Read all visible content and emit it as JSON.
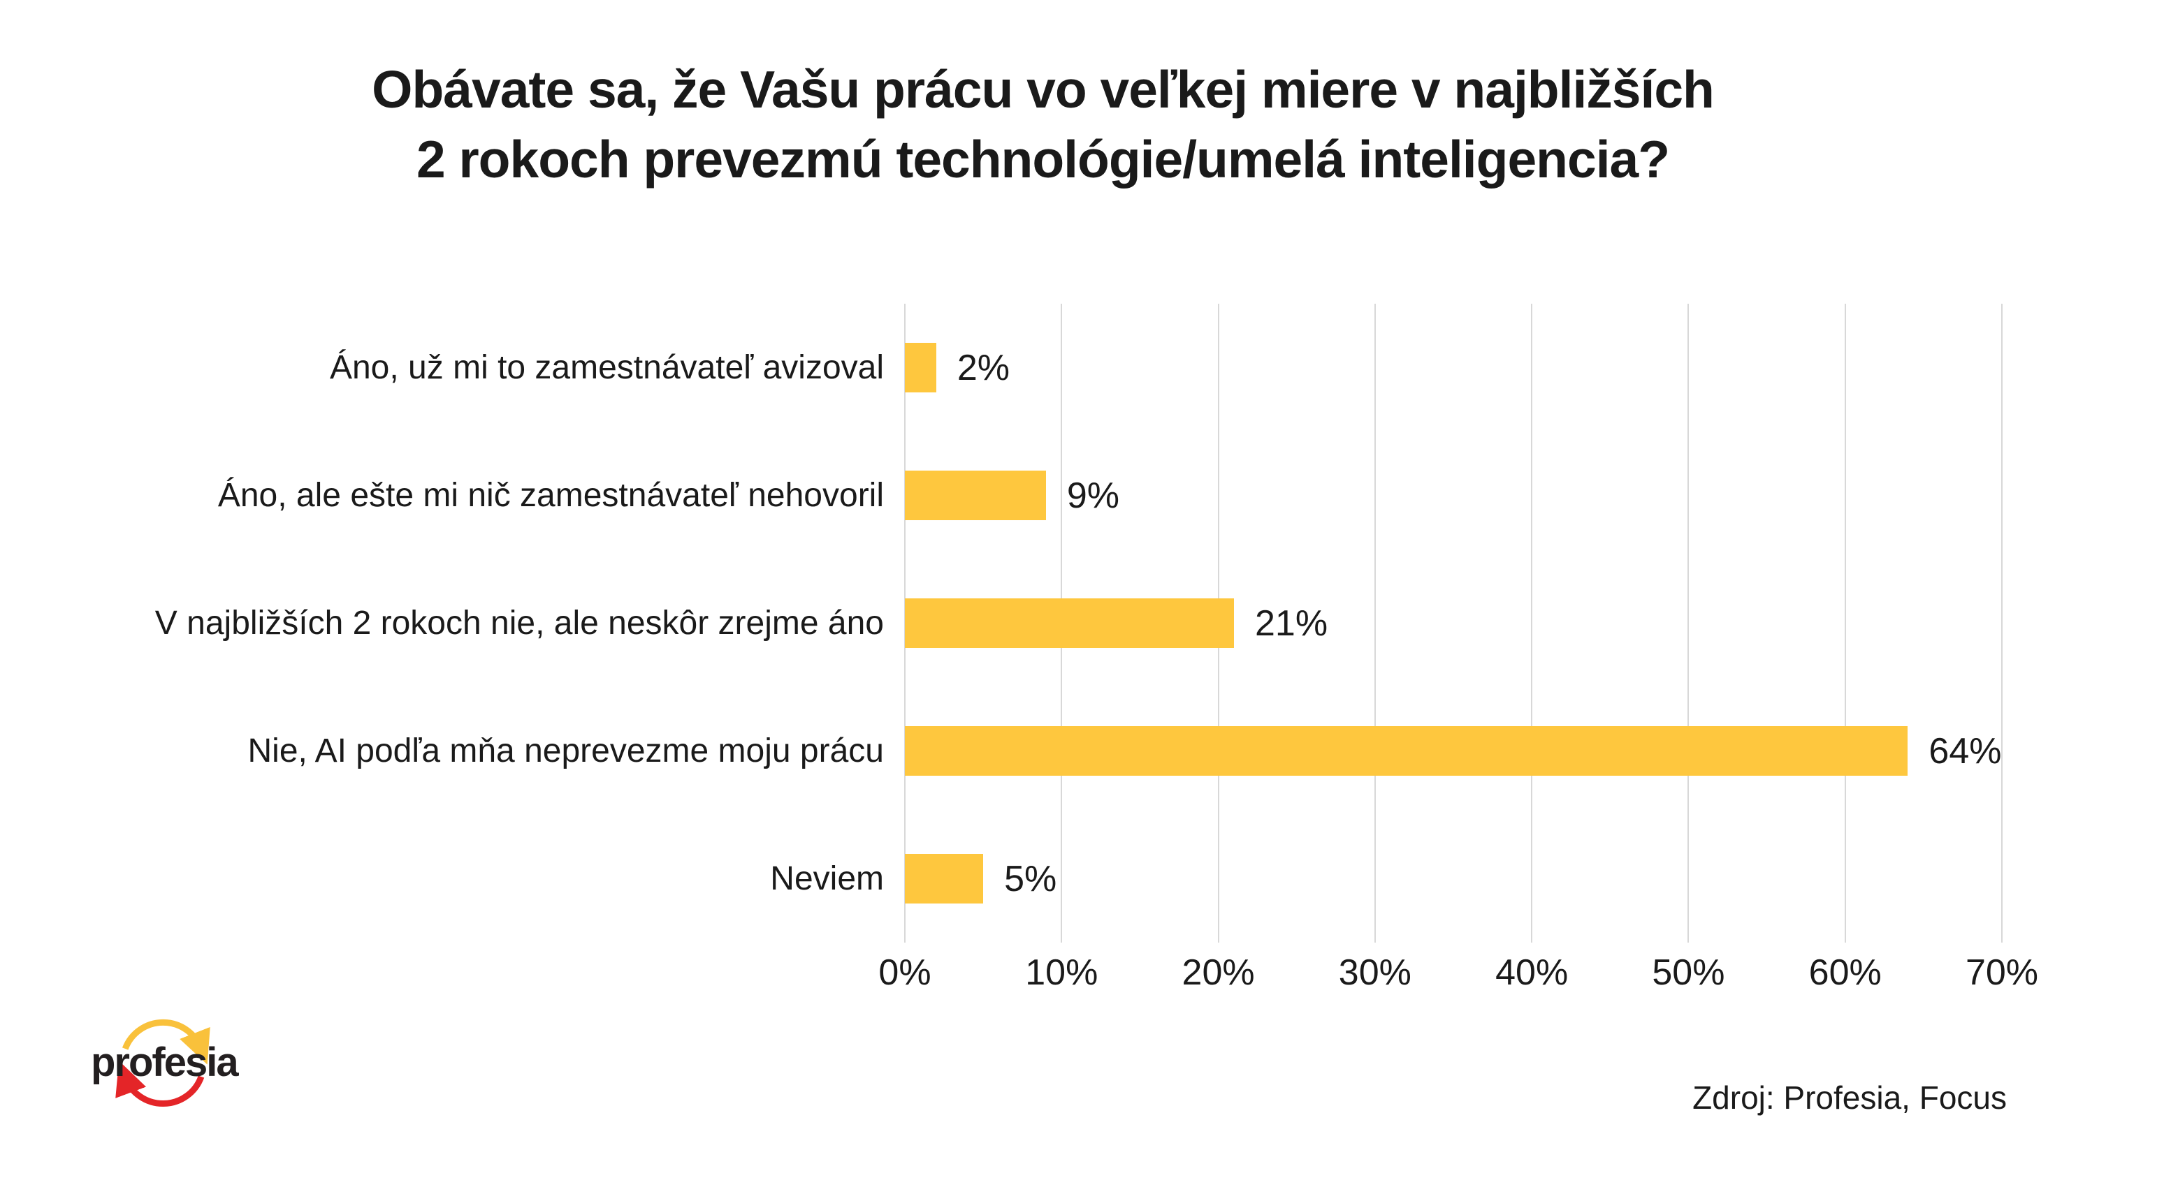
{
  "title": {
    "line1": "Obávate sa, že Vašu prácu vo veľkej miere v najbližších",
    "line2": "2 rokoch prevezmú technológie/umelá inteligencia?"
  },
  "chart_data": {
    "type": "bar",
    "orientation": "horizontal",
    "title": "Obávate sa, že Vašu prácu vo veľkej miere v najbližších 2 rokoch prevezmú technológie/umelá inteligencia?",
    "categories": [
      "Áno, už mi to zamestnávateľ avizoval",
      "Áno, ale ešte mi nič zamestnávateľ nehovoril",
      "V najbližších 2 rokoch nie, ale neskôr zrejme áno",
      "Nie, AI podľa mňa neprevezme moju prácu",
      "Neviem"
    ],
    "values": [
      2,
      9,
      21,
      64,
      5
    ],
    "data_labels": [
      "2%",
      "9%",
      "21%",
      "64%",
      "5%"
    ],
    "xlabel": "",
    "ylabel": "",
    "xlim": [
      0,
      70
    ],
    "x_tick_values": [
      0,
      10,
      20,
      30,
      40,
      50,
      60,
      70
    ],
    "x_tick_labels": [
      "0%",
      "10%",
      "20%",
      "30%",
      "40%",
      "50%",
      "60%",
      "70%"
    ],
    "grid": "vertical-only",
    "legend": "none",
    "bar_color": "#FEC73E"
  },
  "footer": {
    "logo_text": "profesia",
    "source": "Zdroj: Profesia, Focus"
  },
  "colors": {
    "background": "#FFFFFF",
    "bar": "#FEC73E",
    "gridline": "#D8D8D8",
    "text": "#1A1A1A",
    "logo_yellow": "#F9C13B",
    "logo_red": "#E42528",
    "logo_text": "#231F20"
  }
}
